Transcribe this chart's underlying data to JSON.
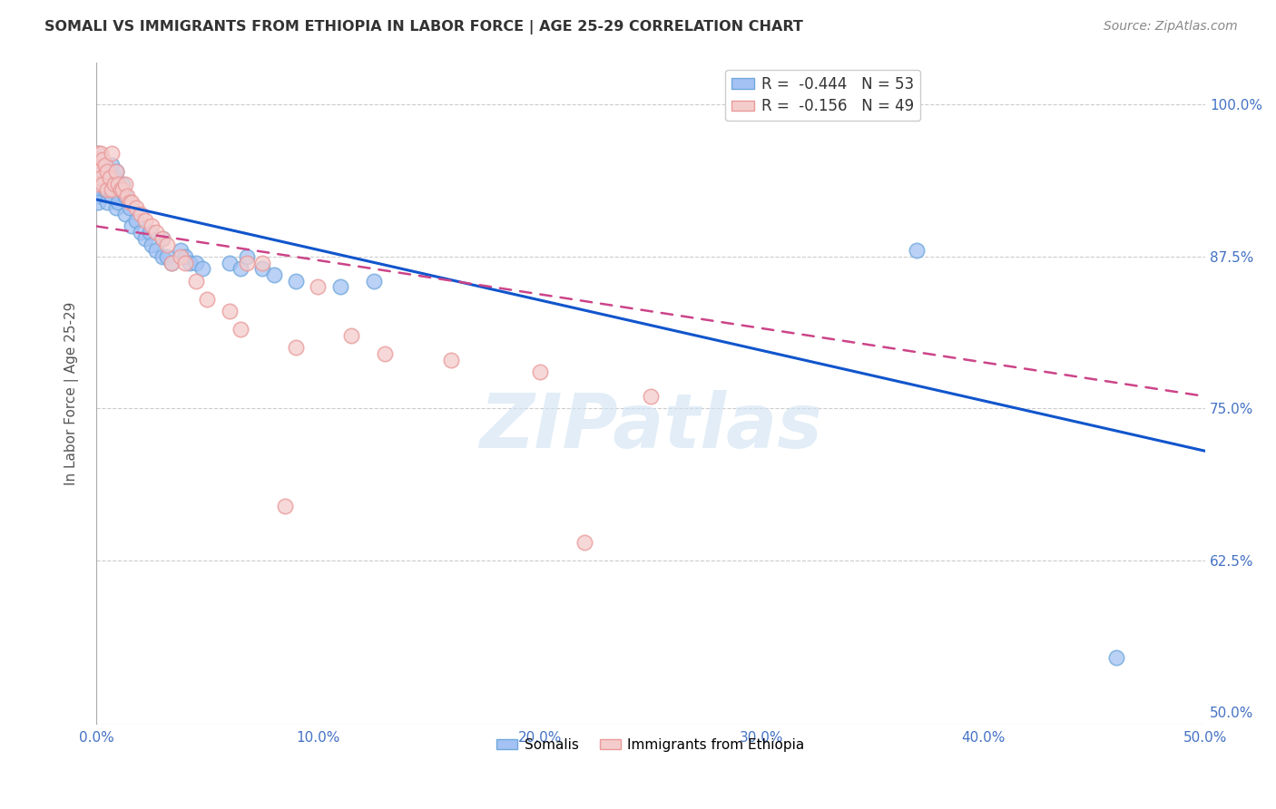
{
  "title": "SOMALI VS IMMIGRANTS FROM ETHIOPIA IN LABOR FORCE | AGE 25-29 CORRELATION CHART",
  "source": "Source: ZipAtlas.com",
  "ylabel": "In Labor Force | Age 25-29",
  "xlabel_ticks": [
    "0.0%",
    "10.0%",
    "20.0%",
    "30.0%",
    "40.0%",
    "50.0%"
  ],
  "ylabel_ticks_right": [
    "50.0%",
    "62.5%",
    "75.0%",
    "87.5%",
    "100.0%"
  ],
  "xlim": [
    0.0,
    0.5
  ],
  "ylim": [
    0.49,
    1.035
  ],
  "watermark": "ZIPatlas",
  "somali_R": -0.444,
  "somali_N": 53,
  "ethiopia_R": -0.156,
  "ethiopia_N": 49,
  "somali_color": "#6fa8dc",
  "ethiopia_color": "#ea9999",
  "somali_color_fill": "#a4c2f4",
  "ethiopia_color_fill": "#f4cccc",
  "somali_line_color": "#1155cc",
  "ethiopia_line_color": "#cc4488",
  "somali_x": [
    0.001,
    0.001,
    0.001,
    0.001,
    0.001,
    0.001,
    0.001,
    0.002,
    0.003,
    0.003,
    0.004,
    0.004,
    0.005,
    0.005,
    0.006,
    0.007,
    0.007,
    0.008,
    0.009,
    0.009,
    0.01,
    0.01,
    0.011,
    0.012,
    0.013,
    0.013,
    0.015,
    0.016,
    0.018,
    0.02,
    0.022,
    0.024,
    0.025,
    0.027,
    0.03,
    0.03,
    0.032,
    0.034,
    0.038,
    0.04,
    0.042,
    0.045,
    0.048,
    0.06,
    0.065,
    0.068,
    0.075,
    0.08,
    0.09,
    0.11,
    0.125,
    0.37,
    0.46
  ],
  "somali_y": [
    0.96,
    0.95,
    0.945,
    0.94,
    0.93,
    0.925,
    0.92,
    0.955,
    0.945,
    0.935,
    0.95,
    0.93,
    0.94,
    0.92,
    0.935,
    0.95,
    0.925,
    0.94,
    0.945,
    0.915,
    0.935,
    0.92,
    0.93,
    0.935,
    0.925,
    0.91,
    0.915,
    0.9,
    0.905,
    0.895,
    0.89,
    0.895,
    0.885,
    0.88,
    0.89,
    0.875,
    0.875,
    0.87,
    0.88,
    0.875,
    0.87,
    0.87,
    0.865,
    0.87,
    0.865,
    0.875,
    0.865,
    0.86,
    0.855,
    0.85,
    0.855,
    0.88,
    0.545
  ],
  "ethiopia_x": [
    0.001,
    0.001,
    0.001,
    0.001,
    0.001,
    0.002,
    0.002,
    0.003,
    0.003,
    0.004,
    0.005,
    0.005,
    0.006,
    0.007,
    0.007,
    0.008,
    0.009,
    0.01,
    0.011,
    0.012,
    0.013,
    0.014,
    0.015,
    0.016,
    0.018,
    0.02,
    0.022,
    0.025,
    0.027,
    0.03,
    0.032,
    0.034,
    0.038,
    0.04,
    0.045,
    0.05,
    0.06,
    0.065,
    0.068,
    0.075,
    0.085,
    0.09,
    0.1,
    0.115,
    0.13,
    0.16,
    0.2,
    0.22,
    0.25
  ],
  "ethiopia_y": [
    0.96,
    0.955,
    0.95,
    0.945,
    0.935,
    0.96,
    0.94,
    0.955,
    0.935,
    0.95,
    0.945,
    0.93,
    0.94,
    0.96,
    0.93,
    0.935,
    0.945,
    0.935,
    0.93,
    0.93,
    0.935,
    0.925,
    0.92,
    0.92,
    0.915,
    0.91,
    0.905,
    0.9,
    0.895,
    0.89,
    0.885,
    0.87,
    0.875,
    0.87,
    0.855,
    0.84,
    0.83,
    0.815,
    0.87,
    0.87,
    0.67,
    0.8,
    0.85,
    0.81,
    0.795,
    0.79,
    0.78,
    0.64,
    0.76
  ],
  "somali_line_x0": 0.0,
  "somali_line_y0": 0.922,
  "somali_line_x1": 0.5,
  "somali_line_y1": 0.715,
  "ethiopia_line_x0": 0.0,
  "ethiopia_line_y0": 0.9,
  "ethiopia_line_x1": 0.5,
  "ethiopia_line_y1": 0.76
}
